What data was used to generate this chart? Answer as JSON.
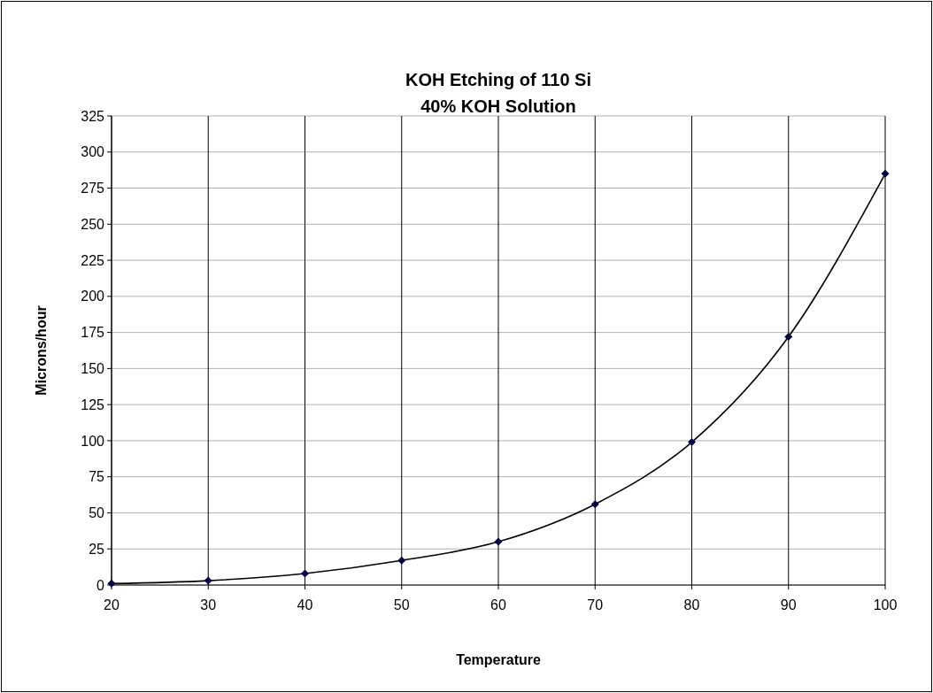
{
  "chart_data": {
    "type": "line",
    "title": "KOH Etching of 110 Si",
    "subtitle": "40% KOH Solution",
    "xlabel": "Temperature",
    "ylabel": "Microns/hour",
    "x": [
      20,
      30,
      40,
      50,
      60,
      70,
      80,
      90,
      100
    ],
    "series": [
      {
        "color": "#000040",
        "values": [
          1,
          3,
          8,
          17,
          30,
          56,
          99,
          172,
          285
        ]
      }
    ],
    "xlim": [
      20,
      100
    ],
    "xticks": [
      20,
      30,
      40,
      50,
      60,
      70,
      80,
      90,
      100
    ],
    "ylim": [
      0,
      325
    ],
    "yticks": [
      0,
      25,
      50,
      75,
      100,
      125,
      150,
      175,
      200,
      225,
      250,
      275,
      300,
      325
    ],
    "grid": true,
    "marker": "diamond",
    "line_style": "solid"
  }
}
